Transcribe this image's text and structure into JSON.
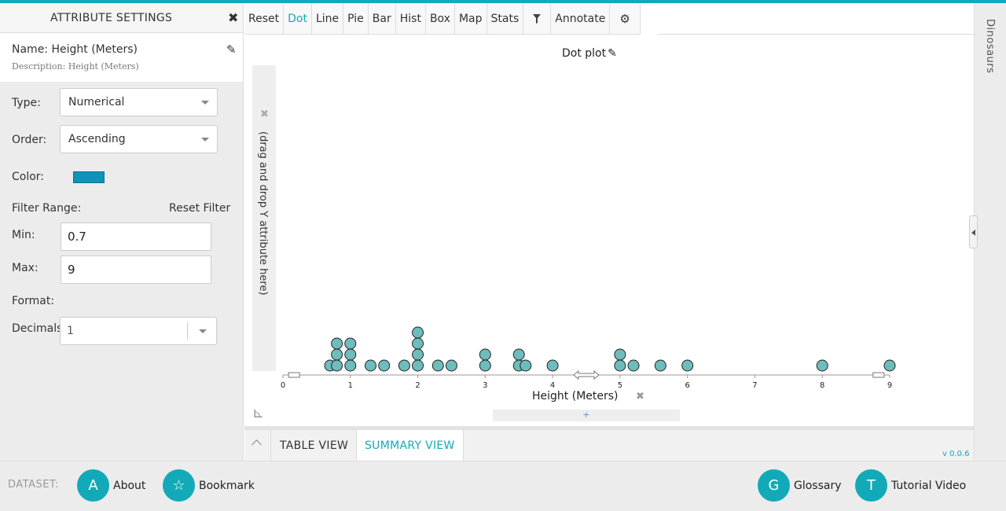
{
  "left_panel": {
    "title": "ATTRIBUTE SETTINGS",
    "name": "Name: Height (Meters)",
    "description": "Description: Height (Meters)",
    "type_label": "Type:",
    "type_value": "Numerical",
    "order_label": "Order:",
    "order_value": "Ascending",
    "color_label": "Color:",
    "color_value": "#0f93b8",
    "filter_label": "Filter Range:",
    "reset_filter": "Reset Filter",
    "min_label": "Min:",
    "min_value": "0.7",
    "max_label": "Max:",
    "max_value": "9",
    "format_label": "Format:",
    "decimals_label": "Decimals:",
    "decimals_value": "1"
  },
  "toolbar": {
    "buttons": [
      "Reset",
      "Dot",
      "Line",
      "Pie",
      "Bar",
      "Hist",
      "Box",
      "Map",
      "Stats",
      "Annotate"
    ],
    "active": "Dot"
  },
  "right_panel": {
    "label": "Dinosaurs"
  },
  "plot": {
    "title": "Dot plot",
    "y_drop_text": "(drag and drop Y attribute here)",
    "x_label": "Height (Meters)",
    "drop_hint": "+"
  },
  "chart_data": {
    "type": "scatter",
    "xlabel": "Height (Meters)",
    "xlim": [
      0,
      9
    ],
    "x_ticks": [
      0,
      1,
      2,
      3,
      4,
      5,
      6,
      7,
      8,
      9
    ],
    "dot_color": "#6fbcbc",
    "values": [
      0.7,
      0.8,
      0.8,
      0.8,
      1.0,
      1.0,
      1.0,
      1.3,
      1.5,
      1.8,
      2.0,
      2.0,
      2.0,
      2.0,
      2.3,
      2.5,
      3.0,
      3.0,
      3.5,
      3.5,
      3.6,
      4.0,
      5.0,
      5.0,
      5.2,
      5.6,
      6.0,
      8.0,
      9.0
    ]
  },
  "tabs": {
    "table": "TABLE VIEW",
    "summary": "SUMMARY VIEW",
    "active": "SUMMARY VIEW"
  },
  "version": "v 0.0.6",
  "footer": {
    "dataset_label": "DATASET:",
    "about": {
      "letter": "A",
      "label": "About"
    },
    "bookmark": {
      "label": "Bookmark"
    },
    "glossary": {
      "letter": "G",
      "label": "Glossary"
    },
    "tutorial": {
      "letter": "T",
      "label": "Tutorial Video"
    }
  }
}
